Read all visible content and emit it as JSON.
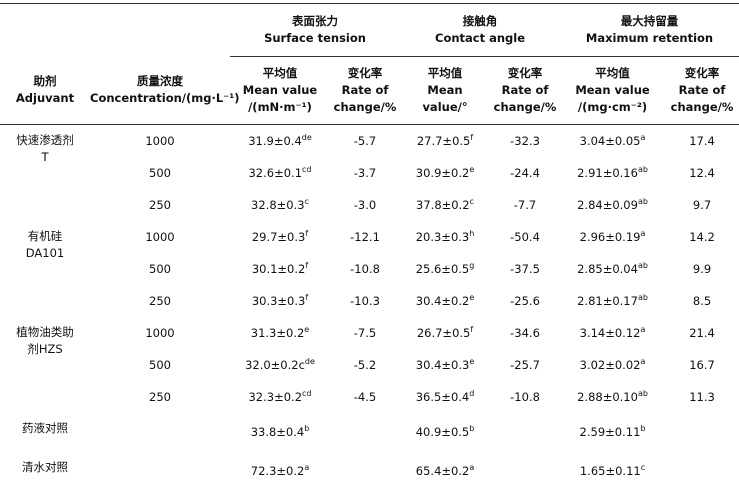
{
  "header": {
    "groups": [
      {
        "zh": "表面张力",
        "en": "Surface tension"
      },
      {
        "zh": "接触角",
        "en": "Contact angle"
      },
      {
        "zh": "最大持留量",
        "en": "Maximum retention"
      }
    ],
    "agent": [
      "助剂",
      "Adjuvant"
    ],
    "concentration": [
      "质量浓度",
      "Concentration/(mg·L⁻¹)"
    ],
    "columns": [
      [
        "平均值",
        "Mean value",
        "/(mN·m⁻¹)"
      ],
      [
        "变化率",
        "Rate of",
        "change/%"
      ],
      [
        "平均值",
        "Mean",
        "value/°"
      ],
      [
        "变化率",
        "Rate of",
        "change/%"
      ],
      [
        "平均值",
        "Mean value",
        "/(mg·cm⁻²)"
      ],
      [
        "变化率",
        "Rate of",
        "change/%"
      ]
    ]
  },
  "groups": [
    {
      "agent": [
        "快速渗透剂",
        "T"
      ],
      "rows": [
        {
          "concentration": "1000",
          "cells": [
            {
              "text": "31.9±0.4",
              "sup": "de"
            },
            "-5.7",
            {
              "text": "27.7±0.5",
              "sup": "f"
            },
            "-32.3",
            {
              "text": "3.04±0.05",
              "sup": "a"
            },
            "17.4"
          ]
        },
        {
          "concentration": "500",
          "cells": [
            {
              "text": "32.6±0.1",
              "sup": "cd"
            },
            "-3.7",
            {
              "text": "30.9±0.2",
              "sup": "e"
            },
            "-24.4",
            {
              "text": "2.91±0.16",
              "sup": "ab"
            },
            "12.4"
          ]
        },
        {
          "concentration": "250",
          "cells": [
            {
              "text": "32.8±0.3",
              "sup": "c"
            },
            "-3.0",
            {
              "text": "37.8±0.2",
              "sup": "c"
            },
            "-7.7",
            {
              "text": "2.84±0.09",
              "sup": "ab"
            },
            "9.7"
          ]
        }
      ]
    },
    {
      "agent": [
        "有机硅",
        "DA101"
      ],
      "rows": [
        {
          "concentration": "1000",
          "cells": [
            {
              "text": "29.7±0.3",
              "sup": "f"
            },
            "-12.1",
            {
              "text": "20.3±0.3",
              "sup": "h"
            },
            "-50.4",
            {
              "text": "2.96±0.19",
              "sup": "a"
            },
            "14.2"
          ]
        },
        {
          "concentration": "500",
          "cells": [
            {
              "text": "30.1±0.2",
              "sup": "f"
            },
            "-10.8",
            {
              "text": "25.6±0.5",
              "sup": "g"
            },
            "-37.5",
            {
              "text": "2.85±0.04",
              "sup": "ab"
            },
            "9.9"
          ]
        },
        {
          "concentration": "250",
          "cells": [
            {
              "text": "30.3±0.3",
              "sup": "f"
            },
            "-10.3",
            {
              "text": "30.4±0.2",
              "sup": "e"
            },
            "-25.6",
            {
              "text": "2.81±0.17",
              "sup": "ab"
            },
            "8.5"
          ]
        }
      ]
    },
    {
      "agent": [
        "植物油类助",
        "剂HZS"
      ],
      "rows": [
        {
          "concentration": "1000",
          "cells": [
            {
              "text": "31.3±0.2",
              "sup": "e"
            },
            "-7.5",
            {
              "text": "26.7±0.5",
              "sup": "f"
            },
            "-34.6",
            {
              "text": "3.14±0.12",
              "sup": "a"
            },
            "21.4"
          ]
        },
        {
          "concentration": "500",
          "cells": [
            {
              "text": "32.0±0.2c",
              "sup": "de"
            },
            "-5.2",
            {
              "text": "30.4±0.3",
              "sup": "e"
            },
            "-25.7",
            {
              "text": "3.02±0.02",
              "sup": "a"
            },
            "16.7"
          ]
        },
        {
          "concentration": "250",
          "cells": [
            {
              "text": "32.3±0.2",
              "sup": "cd"
            },
            "-4.5",
            {
              "text": "36.5±0.4",
              "sup": "d"
            },
            "-10.8",
            {
              "text": "2.88±0.10",
              "sup": "ab"
            },
            "11.3"
          ]
        }
      ]
    },
    {
      "agent": [
        "药液对照"
      ],
      "rows": [
        {
          "concentration": null,
          "cells": [
            {
              "text": "33.8±0.4",
              "sup": "b"
            },
            null,
            {
              "text": "40.9±0.5",
              "sup": "b"
            },
            null,
            {
              "text": "2.59±0.11",
              "sup": "b"
            },
            null
          ]
        }
      ]
    },
    {
      "agent": [
        "清水对照"
      ],
      "rows": [
        {
          "concentration": null,
          "cells": [
            {
              "text": "72.3±0.2",
              "sup": "a"
            },
            null,
            {
              "text": "65.4±0.2",
              "sup": "a"
            },
            null,
            {
              "text": "1.65±0.11",
              "sup": "c"
            },
            null
          ]
        }
      ]
    }
  ]
}
